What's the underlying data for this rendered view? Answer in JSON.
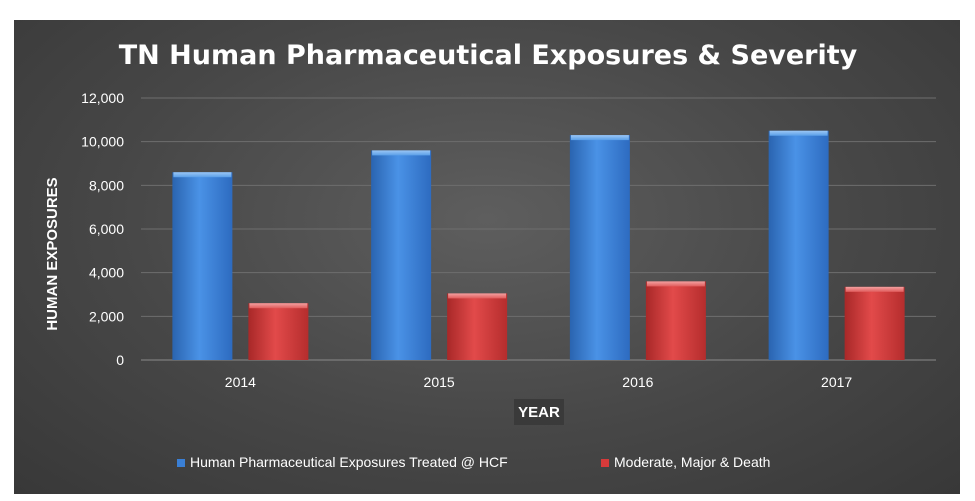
{
  "chart_data": {
    "type": "bar",
    "title": "TN Human Pharmaceutical Exposures & Severity",
    "xlabel": "YEAR",
    "ylabel": "HUMAN EXPOSURES",
    "categories": [
      "2014",
      "2015",
      "2016",
      "2017"
    ],
    "series": [
      {
        "name": "Human Pharmaceutical Exposures Treated @ HCF",
        "values": [
          8600,
          9600,
          10300,
          10500
        ],
        "color": "#3a7fd5"
      },
      {
        "name": "Moderate, Major & Death",
        "values": [
          2600,
          3050,
          3600,
          3350
        ],
        "color": "#d63a3a"
      }
    ],
    "ylim": [
      0,
      12000
    ],
    "yticks": [
      0,
      2000,
      4000,
      6000,
      8000,
      10000,
      12000
    ],
    "ytick_labels": [
      "0",
      "2,000",
      "4,000",
      "6,000",
      "8,000",
      "10,000",
      "12,000"
    ],
    "grid": true,
    "legend_position": "bottom",
    "background": "#474747"
  }
}
